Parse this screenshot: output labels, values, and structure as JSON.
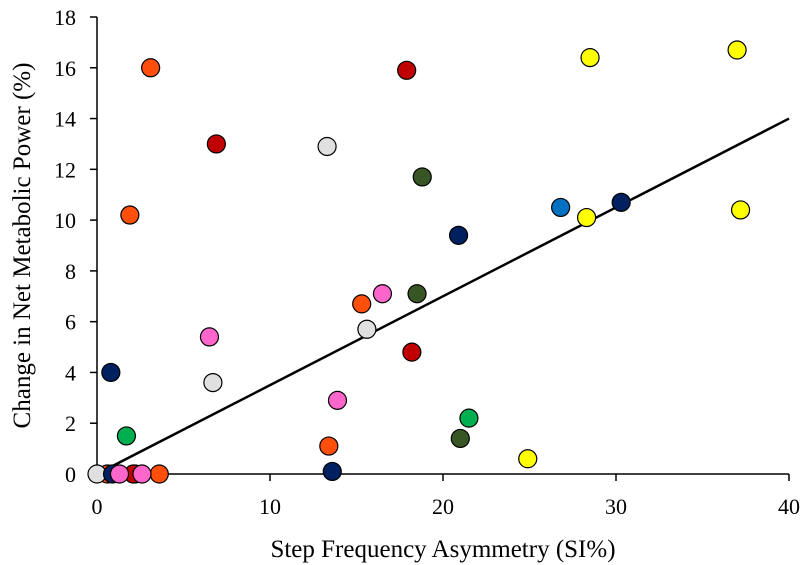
{
  "chart_data": {
    "type": "scatter",
    "xlabel": "Step Frequency Asymmetry (SI%)",
    "ylabel": "Change in Net Metabolic Power (%)",
    "xlim": [
      0,
      40
    ],
    "ylim": [
      0,
      18
    ],
    "x_ticks": [
      "0",
      "10",
      "20",
      "30",
      "40"
    ],
    "y_ticks": [
      "0",
      "2",
      "4",
      "6",
      "8",
      "10",
      "12",
      "14",
      "16",
      "18"
    ],
    "x_tick_values": [
      0,
      10,
      20,
      30,
      40
    ],
    "y_tick_values": [
      0,
      2,
      4,
      6,
      8,
      10,
      12,
      14,
      16,
      18
    ],
    "grid": false,
    "legend": "none",
    "trendline": {
      "x": [
        0,
        40
      ],
      "y": [
        0,
        14
      ]
    },
    "series": [
      {
        "color": "#ff4f0b",
        "points": [
          [
            3.1,
            16.0
          ],
          [
            1.9,
            10.2
          ],
          [
            15.3,
            6.7
          ],
          [
            13.4,
            1.1
          ],
          [
            0.6,
            0
          ],
          [
            2.2,
            0
          ],
          [
            3.6,
            0
          ]
        ]
      },
      {
        "color": "#c00000",
        "points": [
          [
            6.9,
            13.0
          ],
          [
            17.9,
            15.9
          ],
          [
            18.2,
            4.8
          ],
          [
            2.1,
            0
          ]
        ]
      },
      {
        "color": "#ffff00",
        "points": [
          [
            28.5,
            16.4
          ],
          [
            37.0,
            16.7
          ],
          [
            28.3,
            10.1
          ],
          [
            37.2,
            10.4
          ],
          [
            24.9,
            0.6
          ]
        ]
      },
      {
        "color": "#e0e0e0",
        "points": [
          [
            13.3,
            12.9
          ],
          [
            15.6,
            5.7
          ],
          [
            6.7,
            3.6
          ],
          [
            0,
            0
          ]
        ]
      },
      {
        "color": "#375623",
        "points": [
          [
            18.8,
            11.7
          ],
          [
            18.5,
            7.1
          ],
          [
            21.0,
            1.4
          ]
        ]
      },
      {
        "color": "#0070c0",
        "points": [
          [
            26.8,
            10.5
          ]
        ]
      },
      {
        "color": "#002060",
        "points": [
          [
            30.3,
            10.7
          ],
          [
            20.9,
            9.4
          ],
          [
            0.8,
            4.0
          ],
          [
            13.6,
            0.1
          ],
          [
            0.9,
            0
          ]
        ]
      },
      {
        "color": "#ff66cc",
        "points": [
          [
            16.5,
            7.1
          ],
          [
            6.5,
            5.4
          ],
          [
            13.9,
            2.9
          ],
          [
            1.3,
            0
          ],
          [
            2.6,
            0
          ]
        ]
      },
      {
        "color": "#00b050",
        "points": [
          [
            1.7,
            1.5
          ],
          [
            21.5,
            2.2
          ]
        ]
      }
    ]
  }
}
